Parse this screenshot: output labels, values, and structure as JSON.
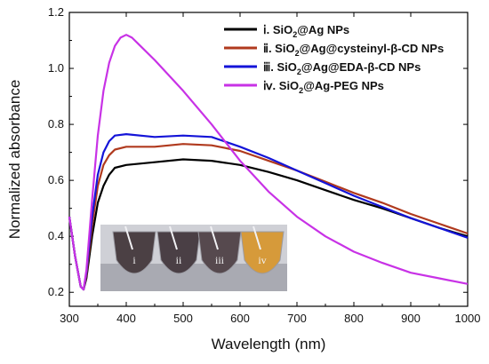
{
  "chart_data": {
    "type": "line",
    "xlabel": "Wavelength (nm)",
    "ylabel": "Normalized absorbance",
    "xlim": [
      300,
      1000
    ],
    "ylim": [
      0.15,
      1.2
    ],
    "x_ticks": [
      300,
      400,
      500,
      600,
      700,
      800,
      900,
      1000
    ],
    "y_ticks": [
      0.2,
      0.4,
      0.6,
      0.8,
      1.0,
      1.2
    ],
    "x_tick_labels": [
      "300",
      "400",
      "500",
      "600",
      "700",
      "800",
      "900",
      "1000"
    ],
    "y_tick_labels": [
      "0.2",
      "0.4",
      "0.6",
      "0.8",
      "1.0",
      "1.2"
    ],
    "grid": false,
    "legend_position": "top-right",
    "series": [
      {
        "name": "ⅰ. SiO2@Ag NPs",
        "legend_parts": [
          "ⅰ. SiO",
          "2",
          "@Ag NPs"
        ],
        "color": "#000000",
        "x": [
          300,
          310,
          320,
          325,
          330,
          340,
          350,
          360,
          370,
          380,
          400,
          450,
          500,
          550,
          600,
          650,
          700,
          750,
          800,
          850,
          900,
          950,
          1000
        ],
        "y": [
          0.47,
          0.33,
          0.22,
          0.21,
          0.25,
          0.4,
          0.52,
          0.58,
          0.62,
          0.645,
          0.655,
          0.665,
          0.675,
          0.67,
          0.655,
          0.63,
          0.6,
          0.565,
          0.53,
          0.5,
          0.465,
          0.43,
          0.4
        ]
      },
      {
        "name": "ⅱ. SiO2@Ag@cysteinyl-β-CD NPs",
        "legend_parts": [
          "ⅱ. SiO",
          "2",
          "@Ag@cysteinyl-β-CD NPs"
        ],
        "color": "#b03a1e",
        "x": [
          300,
          310,
          320,
          325,
          330,
          340,
          350,
          360,
          370,
          380,
          400,
          450,
          500,
          550,
          600,
          650,
          700,
          750,
          800,
          850,
          900,
          950,
          1000
        ],
        "y": [
          0.47,
          0.33,
          0.22,
          0.21,
          0.26,
          0.44,
          0.58,
          0.655,
          0.69,
          0.71,
          0.72,
          0.72,
          0.73,
          0.725,
          0.705,
          0.67,
          0.635,
          0.595,
          0.555,
          0.52,
          0.48,
          0.445,
          0.41
        ]
      },
      {
        "name": "ⅲ. SiO2@Ag@EDA-β-CD NPs",
        "legend_parts": [
          "ⅲ. SiO",
          "2",
          "@Ag@EDA-β-CD NPs"
        ],
        "color": "#1414d8",
        "x": [
          300,
          310,
          320,
          325,
          330,
          340,
          350,
          360,
          370,
          380,
          400,
          450,
          500,
          550,
          600,
          650,
          700,
          750,
          800,
          850,
          900,
          950,
          1000
        ],
        "y": [
          0.47,
          0.33,
          0.22,
          0.21,
          0.27,
          0.47,
          0.62,
          0.7,
          0.74,
          0.76,
          0.765,
          0.755,
          0.76,
          0.755,
          0.72,
          0.68,
          0.635,
          0.59,
          0.545,
          0.505,
          0.465,
          0.43,
          0.395
        ]
      },
      {
        "name": "ⅳ. SiO2@Ag-PEG NPs",
        "legend_parts": [
          "ⅳ. SiO",
          "2",
          "@Ag-PEG NPs"
        ],
        "color": "#c832e6",
        "x": [
          300,
          310,
          320,
          325,
          330,
          340,
          350,
          360,
          370,
          380,
          390,
          400,
          410,
          420,
          450,
          500,
          550,
          600,
          650,
          700,
          750,
          800,
          850,
          900,
          950,
          1000
        ],
        "y": [
          0.47,
          0.33,
          0.22,
          0.21,
          0.28,
          0.53,
          0.76,
          0.92,
          1.02,
          1.08,
          1.11,
          1.12,
          1.11,
          1.09,
          1.03,
          0.92,
          0.8,
          0.67,
          0.56,
          0.47,
          0.4,
          0.345,
          0.305,
          0.27,
          0.25,
          0.23
        ]
      }
    ]
  },
  "inset_photo": {
    "vial_labels": [
      "i",
      "ii",
      "iii",
      "iv"
    ]
  }
}
